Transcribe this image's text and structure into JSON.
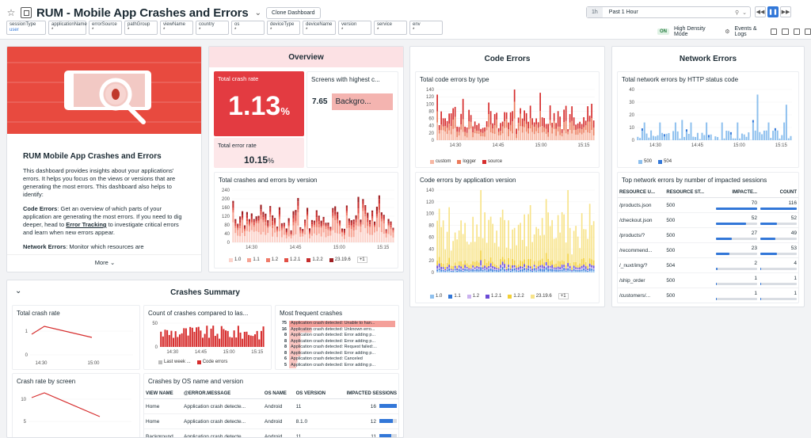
{
  "header": {
    "title": "RUM - Mobile App Crashes and Errors",
    "clone_label": "Clone Dashboard",
    "time_badge": "1h",
    "time_value": "Past 1 Hour"
  },
  "vars": [
    {
      "name": "sessionType",
      "value": "user"
    },
    {
      "name": "applicationName",
      "value": "*"
    },
    {
      "name": "errorSource",
      "value": "*"
    },
    {
      "name": "pathGroup",
      "value": "*"
    },
    {
      "name": "viewName",
      "value": "*"
    },
    {
      "name": "country",
      "value": "*"
    },
    {
      "name": "os",
      "value": "*"
    },
    {
      "name": "deviceType",
      "value": "*"
    },
    {
      "name": "deviceName",
      "value": "*"
    },
    {
      "name": "version",
      "value": "*"
    },
    {
      "name": "service",
      "value": "*"
    },
    {
      "name": "env",
      "value": "*"
    }
  ],
  "tools": {
    "on": "ON",
    "density": "High Density Mode",
    "events": "Events & Logs"
  },
  "intro": {
    "heading": "RUM Mobile App Crashes and Errors",
    "p1": "This dashboard provides insights about your applications' errors. It helps you focus on the views or versions that are generating the most errors. This dashboard also helps to identify:",
    "p2_bold": "Code Errors",
    "p2a": ": Get an overview of which parts of your application are generating the most errors. If you need to dig deeper, head to ",
    "p2_link": "Error Tracking",
    "p2b": " to investigate critical errors and learn when new errors appear.",
    "p3_bold": "Network Errors",
    "p3": ": Monitor which resources are",
    "more": "More"
  },
  "overview": {
    "title": "Overview",
    "crash_label": "Total crash rate",
    "crash_value": "1.13",
    "crash_unit": "%",
    "error_label": "Total error rate",
    "error_value": "10.15",
    "error_unit": "%",
    "screens_label": "Screens with highest c...",
    "screens_value": "7.65",
    "screens_name": "Backgro...",
    "by_version": "Total crashes and errors by version",
    "legend": [
      "1.0",
      "1.1",
      "1.2",
      "1.2.1",
      "1.2.2",
      "23.19.6"
    ],
    "more": "+1",
    "y_ticks": [
      "240",
      "200",
      "160",
      "120",
      "80",
      "40",
      "0"
    ],
    "x_ticks": [
      "14:30",
      "14:45",
      "15:00",
      "15:15"
    ]
  },
  "code": {
    "title": "Code Errors",
    "by_type": "Total code errors by type",
    "type_legend": [
      "custom",
      "logger",
      "source"
    ],
    "by_version": "Code errors by application version",
    "version_legend": [
      "1.0",
      "1.1",
      "1.2",
      "1.2.1",
      "1.2.2",
      "23.19.6"
    ],
    "more": "+1",
    "y1": [
      "140",
      "120",
      "100",
      "80",
      "60",
      "40",
      "20",
      "0"
    ],
    "y2": [
      "140",
      "120",
      "100",
      "80",
      "60",
      "40",
      "20",
      "0"
    ],
    "x_ticks": [
      "14:30",
      "14:45",
      "15:00",
      "15:15"
    ]
  },
  "network": {
    "title": "Network Errors",
    "by_status": "Total network errors by HTTP status code",
    "legend": [
      "500",
      "504"
    ],
    "y_ticks": [
      "40",
      "30",
      "20",
      "10",
      "0"
    ],
    "x_ticks": [
      "14:30",
      "14:45",
      "15:00",
      "15:15"
    ],
    "top_title": "Top network errors by number of impacted sessions",
    "cols": [
      "RESOURCE U...",
      "RESOURCE ST...",
      "IMPACTE...",
      "COUNT"
    ],
    "rows": [
      {
        "url": "/products.json",
        "status": "500",
        "impacted": "70",
        "count": "116",
        "pi": 100,
        "pc": 100
      },
      {
        "url": "/checkout.json",
        "status": "500",
        "impacted": "52",
        "count": "52",
        "pi": 74,
        "pc": 45
      },
      {
        "url": "/products/?",
        "status": "500",
        "impacted": "27",
        "count": "49",
        "pi": 39,
        "pc": 42
      },
      {
        "url": "/recommend...",
        "status": "500",
        "impacted": "23",
        "count": "53",
        "pi": 33,
        "pc": 46
      },
      {
        "url": "/_nuxt/img/?",
        "status": "504",
        "impacted": "2",
        "count": "4",
        "pi": 3,
        "pc": 3
      },
      {
        "url": "/ship_order",
        "status": "500",
        "impacted": "1",
        "count": "1",
        "pi": 1,
        "pc": 1
      },
      {
        "url": "/customers/...",
        "status": "500",
        "impacted": "1",
        "count": "1",
        "pi": 1,
        "pc": 1
      }
    ]
  },
  "crashes": {
    "title": "Crashes Summary",
    "total_rate": "Total crash rate",
    "rate_y": [
      "1",
      "0"
    ],
    "rate_x": [
      "14:30",
      "15:00"
    ],
    "count_title": "Count of crashes compared to las...",
    "count_legend": [
      "Last week ...",
      "Code errors"
    ],
    "count_x": [
      "14:30",
      "14:45",
      "15:00",
      "15:15"
    ],
    "count_y": [
      "50",
      "0"
    ],
    "freq_title": "Most frequent crashes",
    "freq": [
      {
        "n": "75",
        "t": "Application crash detected: Unable to han..."
      },
      {
        "n": "16",
        "t": "Application crash detected: Unknown erro..."
      },
      {
        "n": "8",
        "t": "Application crash detected: Error adding p..."
      },
      {
        "n": "8",
        "t": "Application crash detected: Error adding p..."
      },
      {
        "n": "8",
        "t": "Application crash detected: Request failed:..."
      },
      {
        "n": "8",
        "t": "Application crash detected: Error adding p..."
      },
      {
        "n": "6",
        "t": "Application crash detected: Canceled"
      },
      {
        "n": "5",
        "t": "Application crash detected: Error adding p..."
      }
    ],
    "screen_title": "Crash rate by screen",
    "screen_y": [
      "10",
      "5"
    ],
    "os_title": "Crashes by OS name and version",
    "os_cols": [
      "VIEW NAME",
      "@ERROR.MESSAGE",
      "OS NAME",
      "OS VERSION",
      "IMPACTED SESSIONS"
    ],
    "os_rows": [
      {
        "v": "Home",
        "m": "Application crash detecte...",
        "o": "Android",
        "ver": "11",
        "s": "16",
        "p": 100
      },
      {
        "v": "Home",
        "m": "Application crash detecte...",
        "o": "Android",
        "ver": "8.1.0",
        "s": "12",
        "p": 75
      },
      {
        "v": "Background",
        "m": "Application crash detecte...",
        "o": "Android",
        "ver": "11",
        "s": "11",
        "p": 70
      }
    ]
  },
  "colors": {
    "accent": "#3277d8",
    "red": "#e8443a",
    "pink": "#fce8ea",
    "lightblue": "#8ec0ee",
    "yellow": "#f6df7d"
  }
}
